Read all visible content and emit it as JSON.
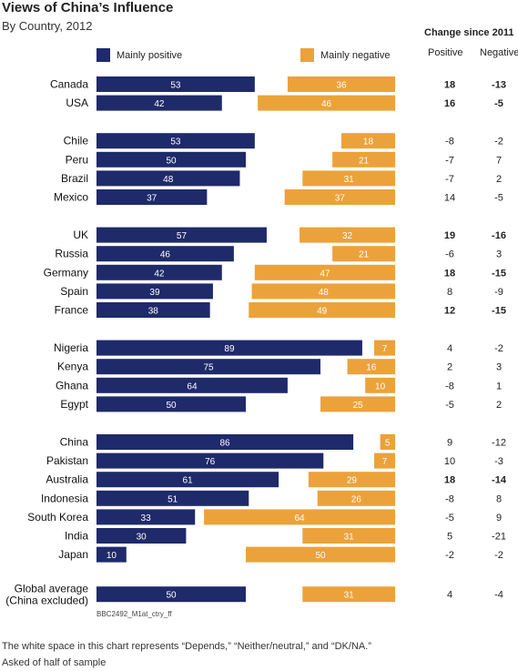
{
  "colors": {
    "positive": "#1f2a6b",
    "negative": "#eca23a",
    "text": "#222222"
  },
  "header": {
    "title": "Views of China’s Influence",
    "subtitle": "By Country, 2012"
  },
  "legend": {
    "positive_label": "Mainly positive",
    "negative_label": "Mainly negative"
  },
  "change_header": {
    "title": "Change since 2011",
    "positive": "Positive",
    "negative": "Negative"
  },
  "chart_data": {
    "type": "bar",
    "orientation": "horizontal",
    "title": "Views of China’s Influence",
    "subtitle": "By Country, 2012",
    "xlim": [
      0,
      100
    ],
    "grid": false,
    "legend_position": "top",
    "series": [
      {
        "name": "Mainly positive"
      },
      {
        "name": "Mainly negative"
      }
    ],
    "groups": [
      {
        "rows": [
          {
            "country": "Canada",
            "positive": 53,
            "negative": 36,
            "chg_pos": "18",
            "chg_neg": "-13",
            "bold": true
          },
          {
            "country": "USA",
            "positive": 42,
            "negative": 46,
            "chg_pos": "16",
            "chg_neg": "-5",
            "bold": true
          }
        ]
      },
      {
        "rows": [
          {
            "country": "Chile",
            "positive": 53,
            "negative": 18,
            "chg_pos": "-8",
            "chg_neg": "-2",
            "bold": false
          },
          {
            "country": "Peru",
            "positive": 50,
            "negative": 21,
            "chg_pos": "-7",
            "chg_neg": "7",
            "bold": false
          },
          {
            "country": "Brazil",
            "positive": 48,
            "negative": 31,
            "chg_pos": "-7",
            "chg_neg": "2",
            "bold": false
          },
          {
            "country": "Mexico",
            "positive": 37,
            "negative": 37,
            "chg_pos": "14",
            "chg_neg": "-5",
            "bold": false
          }
        ]
      },
      {
        "rows": [
          {
            "country": "UK",
            "positive": 57,
            "negative": 32,
            "chg_pos": "19",
            "chg_neg": "-16",
            "bold": true
          },
          {
            "country": "Russia",
            "positive": 46,
            "negative": 21,
            "chg_pos": "-6",
            "chg_neg": "3",
            "bold": false
          },
          {
            "country": "Germany",
            "positive": 42,
            "negative": 47,
            "chg_pos": "18",
            "chg_neg": "-15",
            "bold": true
          },
          {
            "country": "Spain",
            "positive": 39,
            "negative": 48,
            "chg_pos": "8",
            "chg_neg": "-9",
            "bold": false
          },
          {
            "country": "France",
            "positive": 38,
            "negative": 49,
            "chg_pos": "12",
            "chg_neg": "-15",
            "bold": true
          }
        ]
      },
      {
        "rows": [
          {
            "country": "Nigeria",
            "positive": 89,
            "negative": 7,
            "chg_pos": "4",
            "chg_neg": "-2",
            "bold": false
          },
          {
            "country": "Kenya",
            "positive": 75,
            "negative": 16,
            "chg_pos": "2",
            "chg_neg": "3",
            "bold": false
          },
          {
            "country": "Ghana",
            "positive": 64,
            "negative": 10,
            "chg_pos": "-8",
            "chg_neg": "1",
            "bold": false
          },
          {
            "country": "Egypt",
            "positive": 50,
            "negative": 25,
            "chg_pos": "-5",
            "chg_neg": "2",
            "bold": false
          }
        ]
      },
      {
        "rows": [
          {
            "country": "China",
            "positive": 86,
            "negative": 5,
            "chg_pos": "9",
            "chg_neg": "-12",
            "bold": false
          },
          {
            "country": "Pakistan",
            "positive": 76,
            "negative": 7,
            "chg_pos": "10",
            "chg_neg": "-3",
            "bold": false
          },
          {
            "country": "Australia",
            "positive": 61,
            "negative": 29,
            "chg_pos": "18",
            "chg_neg": "-14",
            "bold": true
          },
          {
            "country": "Indonesia",
            "positive": 51,
            "negative": 26,
            "chg_pos": "-8",
            "chg_neg": "8",
            "bold": false
          },
          {
            "country": "South Korea",
            "positive": 33,
            "negative": 64,
            "chg_pos": "-5",
            "chg_neg": "9",
            "bold": false
          },
          {
            "country": "India",
            "positive": 30,
            "negative": 31,
            "chg_pos": "5",
            "chg_neg": "-21",
            "bold": false
          },
          {
            "country": "Japan",
            "positive": 10,
            "negative": 50,
            "chg_pos": "-2",
            "chg_neg": "-2",
            "bold": false
          }
        ]
      },
      {
        "rows": [
          {
            "country": "Global average",
            "country_line2": "(China excluded)",
            "positive": 50,
            "negative": 31,
            "chg_pos": "4",
            "chg_neg": "-4",
            "bold": false
          }
        ]
      }
    ]
  },
  "footer": {
    "source_code": "BBC2492_M1at_ctry_ff",
    "note": "The white space in this chart represents “Depends,” “Neither/neutral,” and “DK/NA.”",
    "sample_note": "Asked of half of sample"
  }
}
